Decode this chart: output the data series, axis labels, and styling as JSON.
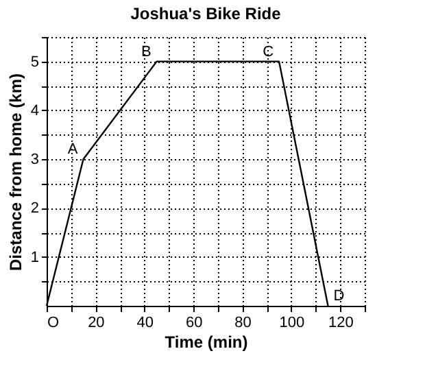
{
  "chart_data": {
    "type": "line",
    "title": "Joshua's Bike Ride",
    "xlabel": "Time (min)",
    "ylabel": "Distance from home (km)",
    "x": [
      0,
      15,
      45,
      95,
      115
    ],
    "series": [
      {
        "color": "#000000",
        "values": [
          0,
          3,
          5,
          5,
          0
        ]
      }
    ],
    "xlim": [
      0,
      130
    ],
    "ylim": [
      0,
      5.5
    ],
    "xticks": [
      {
        "value": 0,
        "label": "O"
      },
      {
        "value": 10,
        "label": null
      },
      20,
      {
        "value": 30,
        "label": null
      },
      40,
      {
        "value": 50,
        "label": null
      },
      60,
      {
        "value": 70,
        "label": null
      },
      80,
      {
        "value": 90,
        "label": null
      },
      100,
      {
        "value": 110,
        "label": null
      },
      120,
      {
        "value": 130,
        "label": null
      }
    ],
    "yticks": [
      {
        "value": 0.5,
        "label": null
      },
      1,
      {
        "value": 1.5,
        "label": null
      },
      2,
      {
        "value": 2.5,
        "label": null
      },
      3,
      {
        "value": 3.5,
        "label": null
      },
      4,
      {
        "value": 4.5,
        "label": null
      },
      5,
      {
        "value": 5.5,
        "label": null
      }
    ],
    "grid": true,
    "marker": "none",
    "line_style": "solid",
    "annotations": [
      {
        "text": "A",
        "x": 15,
        "y": 3
      },
      {
        "text": "B",
        "x": 45,
        "y": 5
      },
      {
        "text": "C",
        "x": 95,
        "y": 5
      },
      {
        "text": "D",
        "x": 115,
        "y": 0
      }
    ]
  }
}
